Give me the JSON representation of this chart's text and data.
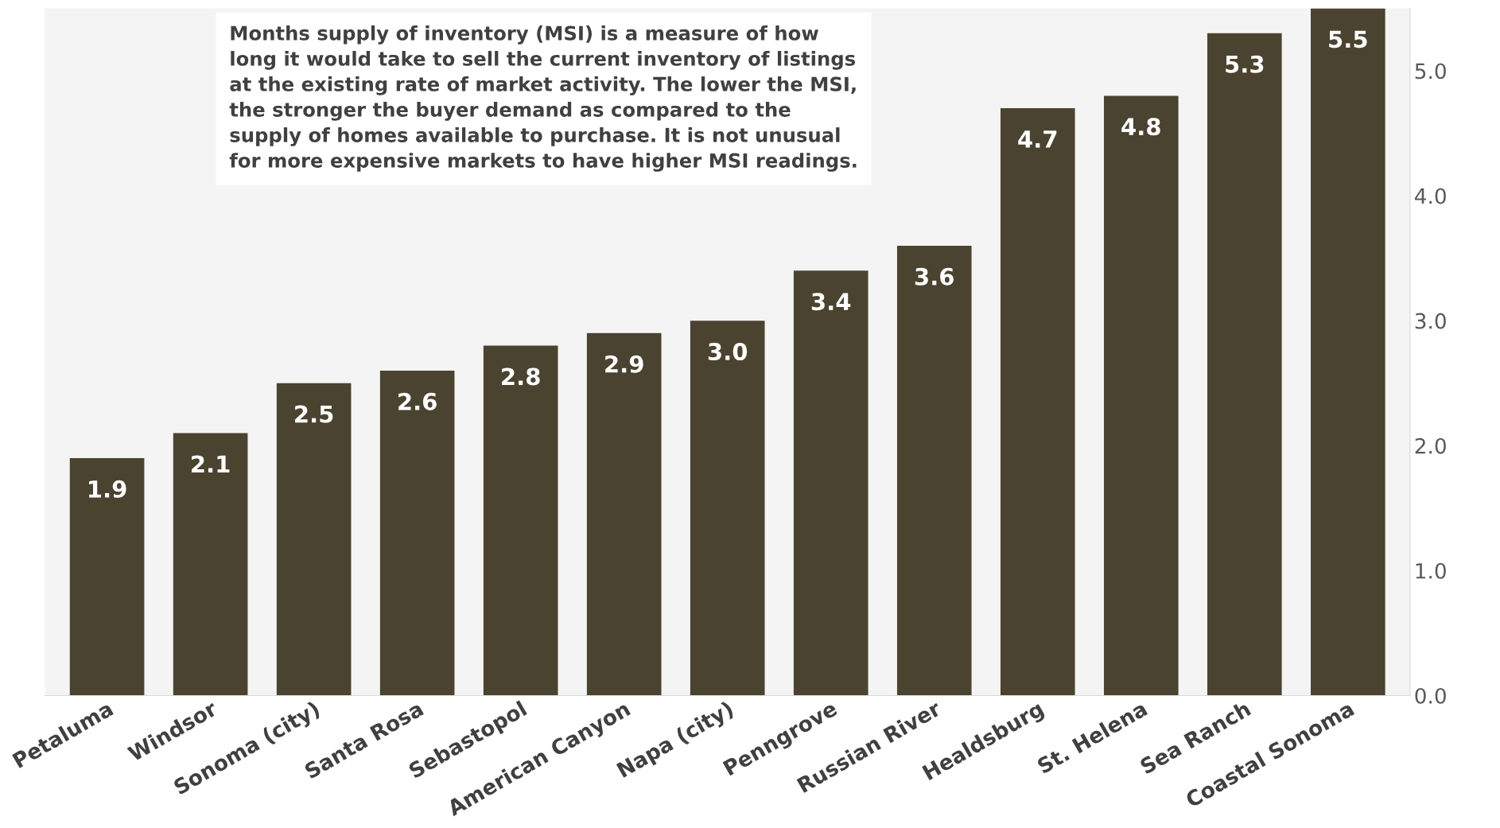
{
  "chart_data": {
    "type": "bar",
    "categories": [
      "Petaluma",
      "Windsor",
      "Sonoma (city)",
      "Santa Rosa",
      "Sebastopol",
      "American Canyon",
      "Napa (city)",
      "Penngrove",
      "Russian River",
      "Healdsburg",
      "St. Helena",
      "Sea Ranch",
      "Coastal Sonoma"
    ],
    "values": [
      1.9,
      2.1,
      2.5,
      2.6,
      2.8,
      2.9,
      3.0,
      3.4,
      3.6,
      4.7,
      4.8,
      5.3,
      5.5
    ],
    "color": "#4a4330",
    "ylim": [
      0,
      5.5
    ],
    "yticks": [
      {
        "value": 0,
        "label": "0.0"
      },
      {
        "value": 1,
        "label": "1.0"
      },
      {
        "value": 2,
        "label": "2.0"
      },
      {
        "value": 3,
        "label": "3.0"
      },
      {
        "value": 4,
        "label": "4.0"
      },
      {
        "value": 5,
        "label": "5.0"
      }
    ],
    "value_labels": [
      "1.9",
      "2.1",
      "2.5",
      "2.6",
      "2.8",
      "2.9",
      "3.0",
      "3.4",
      "3.6",
      "4.7",
      "4.8",
      "5.3",
      "5.5"
    ],
    "grid": false,
    "annotations": [
      "Months supply of inventory (MSI) is a measure of how\nlong it would take to sell the current inventory of listings\nat the existing rate of market activity. The lower the MSI,\nthe stronger the buyer demand as compared to the\nsupply of homes available to purchase. It is not unusual\nfor more expensive markets to have higher MSI readings."
    ]
  }
}
